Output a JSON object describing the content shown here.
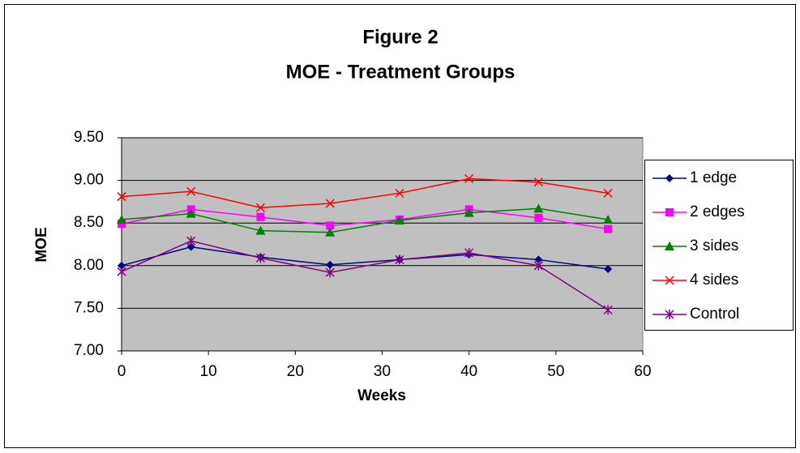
{
  "chart_data": {
    "type": "line",
    "title": [
      "Figure 2",
      "MOE - Treatment Groups"
    ],
    "x_label": "Weeks",
    "y_label": "MOE",
    "x": [
      0,
      8,
      16,
      24,
      32,
      40,
      48,
      56
    ],
    "series": [
      {
        "name": "1 edge",
        "color": "#000080",
        "marker": "diamond",
        "values": [
          8.0,
          8.22,
          8.1,
          8.01,
          8.07,
          8.13,
          8.07,
          7.96
        ]
      },
      {
        "name": "2 edges",
        "color": "#ff00ff",
        "marker": "square",
        "values": [
          8.49,
          8.66,
          8.57,
          8.47,
          8.54,
          8.66,
          8.56,
          8.43
        ]
      },
      {
        "name": "3 sides",
        "color": "#008000",
        "marker": "triangle",
        "values": [
          8.54,
          8.61,
          8.41,
          8.39,
          8.53,
          8.62,
          8.67,
          8.54
        ]
      },
      {
        "name": "4 sides",
        "color": "#ff0000",
        "marker": "x",
        "values": [
          8.81,
          8.87,
          8.68,
          8.73,
          8.85,
          9.02,
          8.98,
          8.85
        ]
      },
      {
        "name": "Control",
        "color": "#800080",
        "marker": "star",
        "values": [
          7.93,
          8.29,
          8.09,
          7.92,
          8.07,
          8.15,
          8.0,
          7.48
        ]
      }
    ],
    "xlim": [
      0,
      60
    ],
    "xticks": [
      0,
      10,
      20,
      30,
      40,
      50,
      60
    ],
    "ylim": [
      7,
      9.5
    ],
    "yticks": [
      {
        "value": 7,
        "label": "7.00"
      },
      {
        "value": 7.5,
        "label": "7.50"
      },
      {
        "value": 8,
        "label": "8.00"
      },
      {
        "value": 8.5,
        "label": "8.50"
      },
      {
        "value": 9,
        "label": "9.00"
      },
      {
        "value": 9.5,
        "label": "9.50"
      }
    ],
    "grid": true,
    "plot_background": "#c0c0c0",
    "legend": "right"
  }
}
